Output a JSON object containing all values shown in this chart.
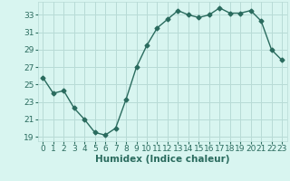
{
  "x": [
    0,
    1,
    2,
    3,
    4,
    5,
    6,
    7,
    8,
    9,
    10,
    11,
    12,
    13,
    14,
    15,
    16,
    17,
    18,
    19,
    20,
    21,
    22,
    23
  ],
  "y": [
    25.8,
    24.0,
    24.3,
    22.3,
    21.0,
    19.5,
    19.2,
    20.0,
    23.3,
    27.0,
    29.5,
    31.5,
    32.5,
    33.5,
    33.0,
    32.7,
    33.0,
    33.8,
    33.2,
    33.2,
    33.5,
    32.3,
    29.0,
    27.8
  ],
  "line_color": "#2a6b5e",
  "marker": "D",
  "marker_size": 2.5,
  "bg_color": "#d8f5f0",
  "grid_color": "#b8dbd6",
  "xlabel": "Humidex (Indice chaleur)",
  "xlim": [
    -0.5,
    23.5
  ],
  "ylim": [
    18.5,
    34.5
  ],
  "yticks": [
    19,
    21,
    23,
    25,
    27,
    29,
    31,
    33
  ],
  "xtick_labels": [
    "0",
    "1",
    "2",
    "3",
    "4",
    "5",
    "6",
    "7",
    "8",
    "9",
    "10",
    "11",
    "12",
    "13",
    "14",
    "15",
    "16",
    "17",
    "18",
    "19",
    "20",
    "21",
    "22",
    "23"
  ],
  "font_color": "#2a6b5e",
  "label_fontsize": 7.5,
  "tick_fontsize": 6.5
}
